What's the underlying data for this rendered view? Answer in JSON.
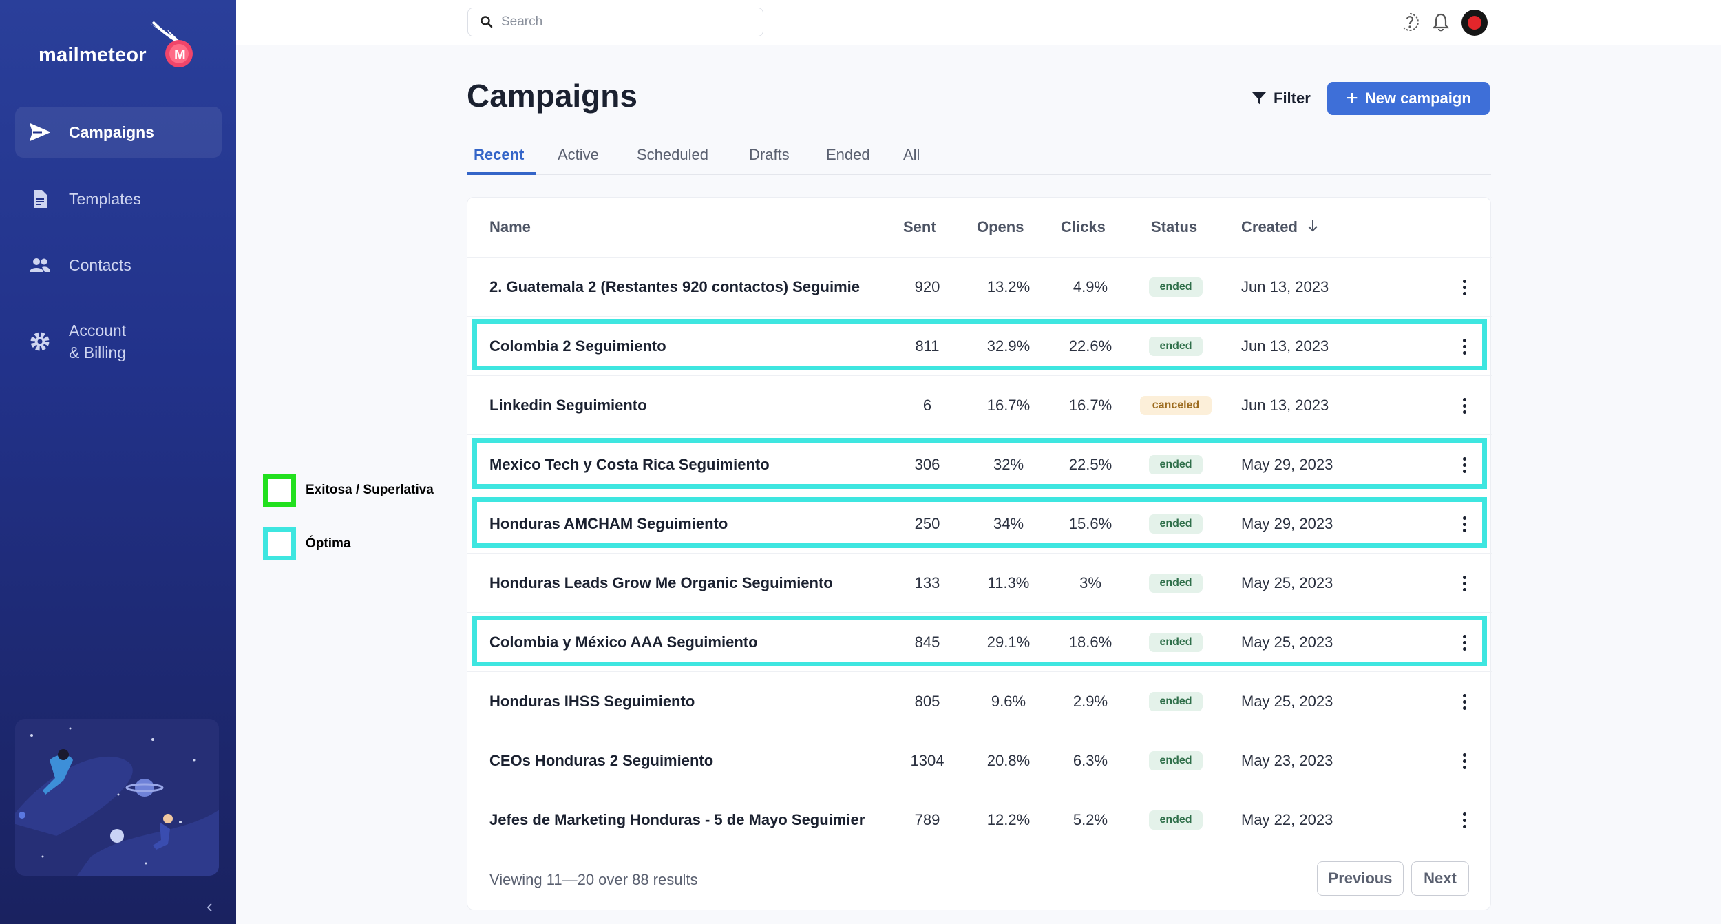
{
  "app": {
    "name": "mailmeteor"
  },
  "sidebar": {
    "items": [
      {
        "label": "Campaigns",
        "icon": "send-icon",
        "active": true
      },
      {
        "label": "Templates",
        "icon": "document-icon",
        "active": false
      },
      {
        "label": "Contacts",
        "icon": "people-icon",
        "active": false
      },
      {
        "label": "Account",
        "label2": "& Billing",
        "icon": "gear-icon",
        "active": false
      }
    ],
    "collapse_icon": "chevron-left-icon"
  },
  "topbar": {
    "search_placeholder": "Search",
    "icons": [
      "help-icon",
      "bell-icon",
      "avatar"
    ]
  },
  "header": {
    "title": "Campaigns",
    "filter_label": "Filter",
    "new_campaign_label": "New campaign"
  },
  "tabs": [
    {
      "label": "Recent",
      "active": true
    },
    {
      "label": "Active"
    },
    {
      "label": "Scheduled"
    },
    {
      "label": "Drafts"
    },
    {
      "label": "Ended"
    },
    {
      "label": "All"
    }
  ],
  "table": {
    "columns": [
      "Name",
      "Sent",
      "Opens",
      "Clicks",
      "Status",
      "Created"
    ],
    "sort_icon": "arrow-down-icon",
    "rows": [
      {
        "name": "2. Guatemala 2 (Restantes 920 contactos) Seguimie",
        "sent": "920",
        "opens": "13.2%",
        "clicks": "4.9%",
        "status": "ended",
        "created": "Jun 13, 2023",
        "highlight": false
      },
      {
        "name": "Colombia 2 Seguimiento",
        "sent": "811",
        "opens": "32.9%",
        "clicks": "22.6%",
        "status": "ended",
        "created": "Jun 13, 2023",
        "highlight": true
      },
      {
        "name": "Linkedin Seguimiento",
        "sent": "6",
        "opens": "16.7%",
        "clicks": "16.7%",
        "status": "canceled",
        "created": "Jun 13, 2023",
        "highlight": false
      },
      {
        "name": "Mexico Tech y Costa Rica Seguimiento",
        "sent": "306",
        "opens": "32%",
        "clicks": "22.5%",
        "status": "ended",
        "created": "May 29, 2023",
        "highlight": true
      },
      {
        "name": "Honduras AMCHAM Seguimiento",
        "sent": "250",
        "opens": "34%",
        "clicks": "15.6%",
        "status": "ended",
        "created": "May 29, 2023",
        "highlight": true
      },
      {
        "name": "Honduras Leads Grow Me Organic Seguimiento",
        "sent": "133",
        "opens": "11.3%",
        "clicks": "3%",
        "status": "ended",
        "created": "May 25, 2023",
        "highlight": false
      },
      {
        "name": "Colombia y México AAA Seguimiento",
        "sent": "845",
        "opens": "29.1%",
        "clicks": "18.6%",
        "status": "ended",
        "created": "May 25, 2023",
        "highlight": true
      },
      {
        "name": "Honduras IHSS Seguimiento",
        "sent": "805",
        "opens": "9.6%",
        "clicks": "2.9%",
        "status": "ended",
        "created": "May 25, 2023",
        "highlight": false
      },
      {
        "name": "CEOs Honduras 2 Seguimiento",
        "sent": "1304",
        "opens": "20.8%",
        "clicks": "6.3%",
        "status": "ended",
        "created": "May 23, 2023",
        "highlight": false
      },
      {
        "name": "Jefes de Marketing Honduras - 5 de Mayo Seguimier",
        "sent": "789",
        "opens": "12.2%",
        "clicks": "5.2%",
        "status": "ended",
        "created": "May 22, 2023",
        "highlight": false
      }
    ]
  },
  "pagination": {
    "summary": "Viewing 11—20 over 88 results",
    "previous_label": "Previous",
    "next_label": "Next"
  },
  "legend": [
    {
      "label": "Exitosa / Superlativa",
      "color": "#22e01e"
    },
    {
      "label": "Óptima",
      "color": "#3ee6e0"
    }
  ],
  "colors": {
    "accent": "#3e6fd8",
    "highlight_optima": "#3ee6e0",
    "highlight_exitosa": "#22e01e"
  }
}
